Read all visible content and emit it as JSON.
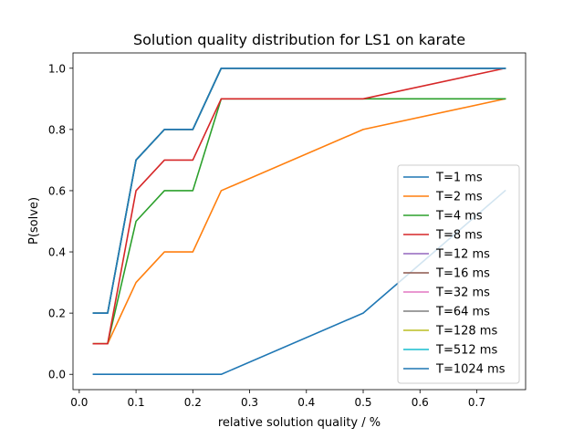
{
  "chart_data": {
    "type": "line",
    "title": "Solution quality distribution for LS1 on karate",
    "xlabel": "relative solution quality / %",
    "ylabel": "P(solve)",
    "xlim": [
      -0.011,
      0.786
    ],
    "ylim": [
      -0.05,
      1.05
    ],
    "xticks": [
      0.0,
      0.1,
      0.2,
      0.3,
      0.4,
      0.5,
      0.6,
      0.7
    ],
    "xtick_labels": [
      "0.0",
      "0.1",
      "0.2",
      "0.3",
      "0.4",
      "0.5",
      "0.6",
      "0.7"
    ],
    "yticks": [
      0.0,
      0.2,
      0.4,
      0.6,
      0.8,
      1.0
    ],
    "ytick_labels": [
      "0.0",
      "0.2",
      "0.4",
      "0.6",
      "0.8",
      "1.0"
    ],
    "grid": false,
    "legend_position": "lower right",
    "x": [
      0.025,
      0.05,
      0.1,
      0.15,
      0.2,
      0.25,
      0.5,
      0.75
    ],
    "series": [
      {
        "name": "T=1 ms",
        "color": "#1f77b4",
        "values": [
          0.0,
          0.0,
          0.0,
          0.0,
          0.0,
          0.0,
          0.2,
          0.6
        ]
      },
      {
        "name": "T=2 ms",
        "color": "#ff7f0e",
        "values": [
          0.1,
          0.1,
          0.3,
          0.4,
          0.4,
          0.6,
          0.8,
          0.9
        ]
      },
      {
        "name": "T=4 ms",
        "color": "#2ca02c",
        "values": [
          0.1,
          0.1,
          0.5,
          0.6,
          0.6,
          0.9,
          0.9,
          0.9
        ]
      },
      {
        "name": "T=8 ms",
        "color": "#d62728",
        "values": [
          0.1,
          0.1,
          0.6,
          0.7,
          0.7,
          0.9,
          0.9,
          1.0
        ]
      },
      {
        "name": "T=12 ms",
        "color": "#9467bd",
        "values": [
          0.2,
          0.2,
          0.7,
          0.8,
          0.8,
          1.0,
          1.0,
          1.0
        ]
      },
      {
        "name": "T=16 ms",
        "color": "#8c564b",
        "values": [
          0.2,
          0.2,
          0.7,
          0.8,
          0.8,
          1.0,
          1.0,
          1.0
        ]
      },
      {
        "name": "T=32 ms",
        "color": "#e377c2",
        "values": [
          0.2,
          0.2,
          0.7,
          0.8,
          0.8,
          1.0,
          1.0,
          1.0
        ]
      },
      {
        "name": "T=64 ms",
        "color": "#7f7f7f",
        "values": [
          0.2,
          0.2,
          0.7,
          0.8,
          0.8,
          1.0,
          1.0,
          1.0
        ]
      },
      {
        "name": "T=128 ms",
        "color": "#bcbd22",
        "values": [
          0.2,
          0.2,
          0.7,
          0.8,
          0.8,
          1.0,
          1.0,
          1.0
        ]
      },
      {
        "name": "T=512 ms",
        "color": "#17becf",
        "values": [
          0.2,
          0.2,
          0.7,
          0.8,
          0.8,
          1.0,
          1.0,
          1.0
        ]
      },
      {
        "name": "T=1024 ms",
        "color": "#1f77b4",
        "values": [
          0.2,
          0.2,
          0.7,
          0.8,
          0.8,
          1.0,
          1.0,
          1.0
        ]
      }
    ]
  }
}
